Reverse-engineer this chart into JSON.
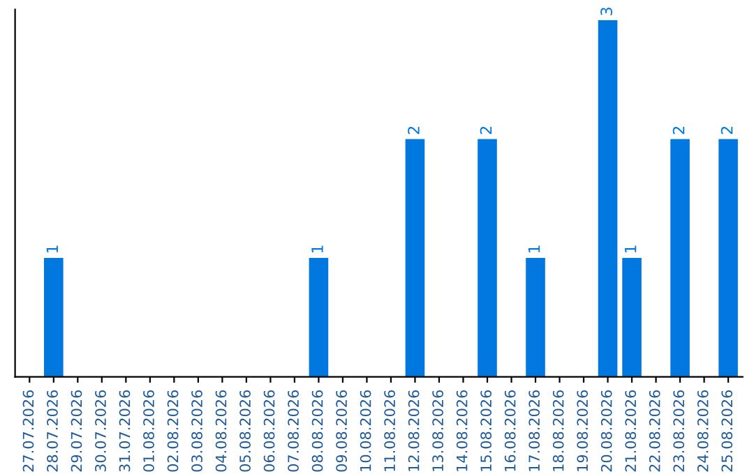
{
  "chart_data": {
    "type": "bar",
    "categories": [
      "27.07.2026",
      "28.07.2026",
      "29.07.2026",
      "30.07.2026",
      "31.07.2026",
      "01.08.2026",
      "02.08.2026",
      "03.08.2026",
      "04.08.2026",
      "05.08.2026",
      "06.08.2026",
      "07.08.2026",
      "08.08.2026",
      "09.08.2026",
      "10.08.2026",
      "11.08.2026",
      "12.08.2026",
      "13.08.2026",
      "14.08.2026",
      "15.08.2026",
      "16.08.2026",
      "17.08.2026",
      "18.08.2026",
      "19.08.2026",
      "20.08.2026",
      "21.08.2026",
      "22.08.2026",
      "23.08.2026",
      "24.08.2026",
      "25.08.2026"
    ],
    "values": [
      0,
      1,
      0,
      0,
      0,
      0,
      0,
      0,
      0,
      0,
      0,
      0,
      1,
      0,
      0,
      0,
      2,
      0,
      0,
      2,
      0,
      1,
      0,
      0,
      3,
      1,
      0,
      2,
      0,
      2
    ],
    "value_labels": [
      null,
      "1",
      null,
      null,
      null,
      null,
      null,
      null,
      null,
      null,
      null,
      null,
      "1",
      null,
      null,
      null,
      "2",
      null,
      null,
      "2",
      null,
      "1",
      null,
      null,
      "3",
      "1",
      null,
      "2",
      null,
      "2"
    ],
    "color": "#0078e0",
    "tick_labels": "x",
    "grid": false,
    "legend": false
  }
}
